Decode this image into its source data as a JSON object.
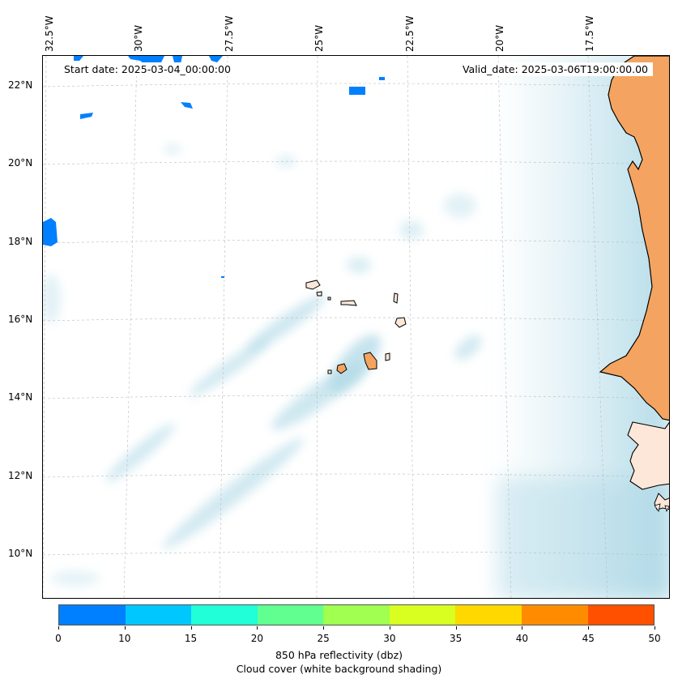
{
  "map": {
    "start_date": "Start date: 2025-03-04_00:00:00",
    "valid_date": "Valid_date: 2025-03-06T19:00:00.00",
    "lon_labels": [
      "32.5°W",
      "30°W",
      "27.5°W",
      "25°W",
      "22.5°W",
      "20°W",
      "17.5°W"
    ],
    "lat_labels": [
      "22°N",
      "20°N",
      "18°N",
      "16°N",
      "14°N",
      "12°N",
      "10°N"
    ],
    "land_color": "#f4a460",
    "coast_color": "#000000",
    "cloud_color": "#add8e6"
  },
  "colorbar": {
    "colors": [
      "#0080ff",
      "#00c8ff",
      "#20ffd8",
      "#60ff90",
      "#a0ff50",
      "#d8ff20",
      "#ffd800",
      "#ff8c00",
      "#ff5000"
    ],
    "ticks": [
      "0",
      "10",
      "15",
      "20",
      "25",
      "30",
      "35",
      "40",
      "45",
      "50"
    ],
    "label_line1": "850 hPa reflectivity (dbz)",
    "label_line2": "Cloud cover (white background shading)"
  }
}
